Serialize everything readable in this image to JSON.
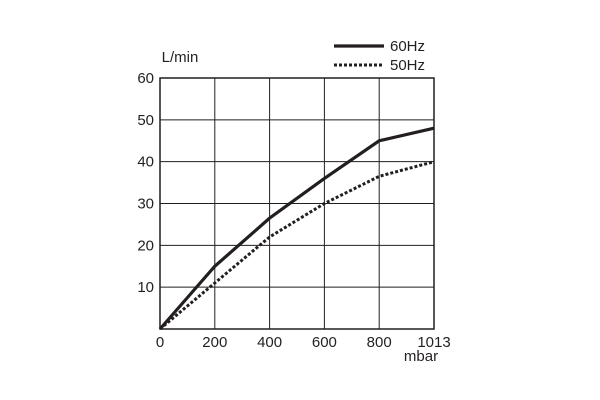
{
  "chart_data": {
    "type": "line",
    "title": "",
    "xlabel": "mbar",
    "ylabel": "L/min",
    "x_tick_labels": [
      "0",
      "200",
      "400",
      "600",
      "800",
      "1013"
    ],
    "y_tick_labels": [
      "10",
      "20",
      "30",
      "40",
      "50",
      "60"
    ],
    "ylim": [
      0,
      60
    ],
    "grid": true,
    "legend_position": "top-right",
    "series": [
      {
        "name": "60Hz",
        "style": "solid",
        "color": "#231f20",
        "x": [
          0,
          200,
          400,
          600,
          800,
          1013
        ],
        "y": [
          0,
          15,
          26.5,
          36,
          45,
          48
        ]
      },
      {
        "name": "50Hz",
        "style": "dotted",
        "color": "#231f20",
        "x": [
          0,
          200,
          400,
          600,
          800,
          1013
        ],
        "y": [
          0,
          11,
          22,
          30,
          36.5,
          40
        ]
      }
    ]
  }
}
